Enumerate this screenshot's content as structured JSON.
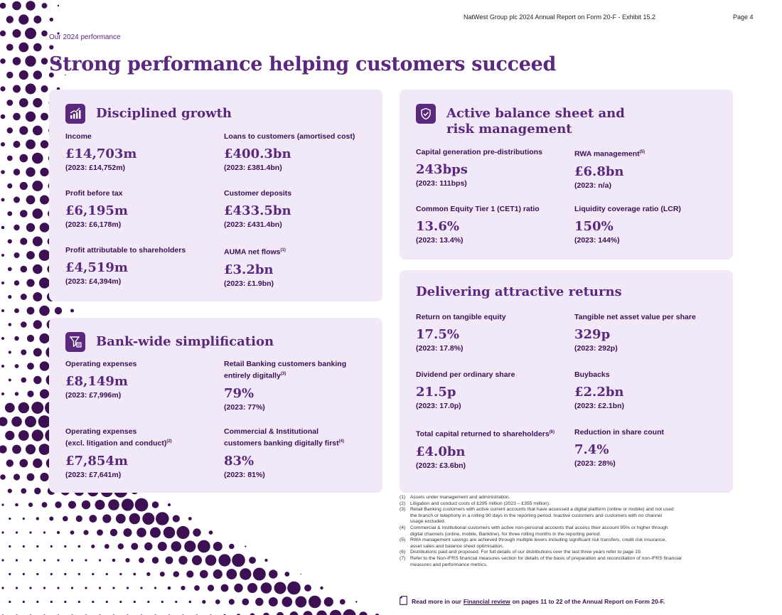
{
  "header": {
    "report_title": "NatWest Group plc 2024 Annual Report on Form 20-F - Exhibit 15.2",
    "page_number": "Page 4"
  },
  "section_label": "Our 2024 performance",
  "page_title": "Strong performance helping customers succeed",
  "colors": {
    "brand": "#5a287d",
    "dark": "#3c1053",
    "card_bg": "#f1e8f8"
  },
  "cards": {
    "growth": {
      "title": "Disciplined growth",
      "icon": "growth-chart-icon",
      "metrics": [
        {
          "label": "Income",
          "value": "£14,703m",
          "prior": "(2023: £14,752m)"
        },
        {
          "label": "Loans to customers (amortised cost)",
          "value": "£400.3bn",
          "prior": "(2023: £381.4bn)"
        },
        {
          "label": "Profit before tax",
          "value": "£6,195m",
          "prior": "(2023: £6,178m)"
        },
        {
          "label": "Customer deposits",
          "value": "£433.5bn",
          "prior": "(2023: £431.4bn)"
        },
        {
          "label": "Profit attributable to shareholders",
          "value": "£4,519m",
          "prior": "(2023: £4,394m)"
        },
        {
          "label": "AUMA net flows",
          "sup": "(1)",
          "value": "£3.2bn",
          "prior": "(2023: £1.9bn)"
        }
      ]
    },
    "simplification": {
      "title": "Bank-wide simplification",
      "icon": "filter-icon",
      "metrics": [
        {
          "label": "Operating expenses",
          "value": "£8,149m",
          "prior": "(2023: £7,996m)"
        },
        {
          "label": "Retail Banking customers banking",
          "label2": "entirely digitally",
          "sup": "(3)",
          "value": "79%",
          "prior": "(2023: 77%)"
        },
        {
          "label": "Operating expenses",
          "label2": "(excl. litigation and conduct)",
          "sup": "(2)",
          "value": "£7,854m",
          "prior": "(2023: £7,641m)"
        },
        {
          "label": "Commercial & Institutional",
          "label2": "customers banking digitally first",
          "sup": "(4)",
          "value": "83%",
          "prior": "(2023: 81%)"
        }
      ]
    },
    "balance": {
      "title_line1": "Active balance sheet and",
      "title_line2": "risk management",
      "icon": "shield-check-icon",
      "metrics": [
        {
          "label": "Capital generation pre-distributions",
          "value": "243bps",
          "prior": "(2023: 111bps)"
        },
        {
          "label": "RWA management",
          "sup": "(5)",
          "value": "£6.8bn",
          "prior": "(2023: n/a)"
        },
        {
          "label": "Common Equity Tier 1 (CET1) ratio",
          "value": "13.6%",
          "prior": "(2023: 13.4%)"
        },
        {
          "label": "Liquidity coverage ratio (LCR)",
          "value": "150%",
          "prior": "(2023: 144%)"
        }
      ]
    },
    "returns": {
      "title": "Delivering attractive returns",
      "metrics": [
        {
          "label": "Return on tangible equity",
          "value": "17.5%",
          "prior": "(2023: 17.8%)"
        },
        {
          "label": "Tangible net asset value per share",
          "value": "329p",
          "prior": "(2023: 292p)"
        },
        {
          "label": "Dividend per ordinary share",
          "value": "21.5p",
          "prior": "(2023: 17.0p)"
        },
        {
          "label": "Buybacks",
          "value": "£2.2bn",
          "prior": "(2023: £2.1bn)"
        },
        {
          "label": "Total capital returned to shareholders",
          "sup": "(6)",
          "value": "£4.0bn",
          "prior": "(2023: £3.6bn)"
        },
        {
          "label": "Reduction in share count",
          "value": "7.4%",
          "prior": "(2023: 28%)"
        }
      ]
    }
  },
  "footnotes": [
    {
      "num": "(1)",
      "lines": [
        "Assets under management and administration."
      ]
    },
    {
      "num": "(2)",
      "lines": [
        "Litigation and conduct costs of £295 million (2023 – £355 million)."
      ]
    },
    {
      "num": "(3)",
      "lines": [
        "Retail Banking customers with active current accounts that have accessed a digital platform (online or mobile) and not used",
        "the branch or telephony in a rolling 90 days in the reporting period. Inactive customers and customers with no channel",
        "usage excluded."
      ]
    },
    {
      "num": "(4)",
      "lines": [
        "Commercial & Institutional customers with active non-personal accounts that access their account 95% or higher through",
        "digital channels (online, mobile, Bankline), for three rolling months in the reporting period."
      ]
    },
    {
      "num": "(5)",
      "lines": [
        "RWA management savings are achieved through multiple levers including significant risk transfers, credit risk insurance,",
        "asset sales and balance sheet optimisation."
      ]
    },
    {
      "num": "(6)",
      "lines": [
        "Distributions paid and proposed. For full details of our distributions over the last three years refer to page 19."
      ]
    },
    {
      "num": "(7)",
      "lines": [
        "Refer to the Non-IFRS financial measures section for details of the basis of preparation and reconciliation of non-IFRS financial",
        "measures and performance metrics."
      ]
    }
  ],
  "read_more": {
    "prefix": "Read more in our",
    "link": "Financial review",
    "suffix": "on pages 11 to 22 of the Annual Report on Form 20-F."
  }
}
